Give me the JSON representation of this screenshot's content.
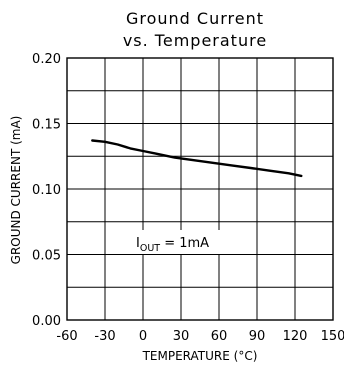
{
  "chart_data": {
    "type": "line",
    "title_line1": "Ground Current",
    "title_line2": "vs. Temperature",
    "xlabel": "TEMPERATURE (°C)",
    "ylabel": "GROUND CURRENT (mA)",
    "xlim": [
      -60,
      150
    ],
    "ylim": [
      0,
      0.2
    ],
    "x_ticks": [
      -60,
      -30,
      0,
      30,
      60,
      90,
      120,
      150
    ],
    "x_tick_labels": [
      "-60",
      "-30",
      "0",
      "30",
      "60",
      "90",
      "120",
      "150"
    ],
    "y_ticks": [
      0,
      0.05,
      0.1,
      0.15,
      0.2
    ],
    "y_tick_labels": [
      "0.00",
      "0.05",
      "0.10",
      "0.15",
      "0.20"
    ],
    "grid": true,
    "series": [
      {
        "x": [
          -40,
          -30,
          -20,
          -10,
          0,
          10,
          25,
          40,
          55,
          70,
          85,
          100,
          115,
          125
        ],
        "y": [
          0.137,
          0.136,
          0.134,
          0.131,
          0.129,
          0.127,
          0.124,
          0.122,
          0.12,
          0.118,
          0.116,
          0.114,
          0.112,
          0.11
        ]
      }
    ],
    "annotation": {
      "main": "I",
      "subscript": "OUT",
      "rest": " = 1mA"
    }
  }
}
